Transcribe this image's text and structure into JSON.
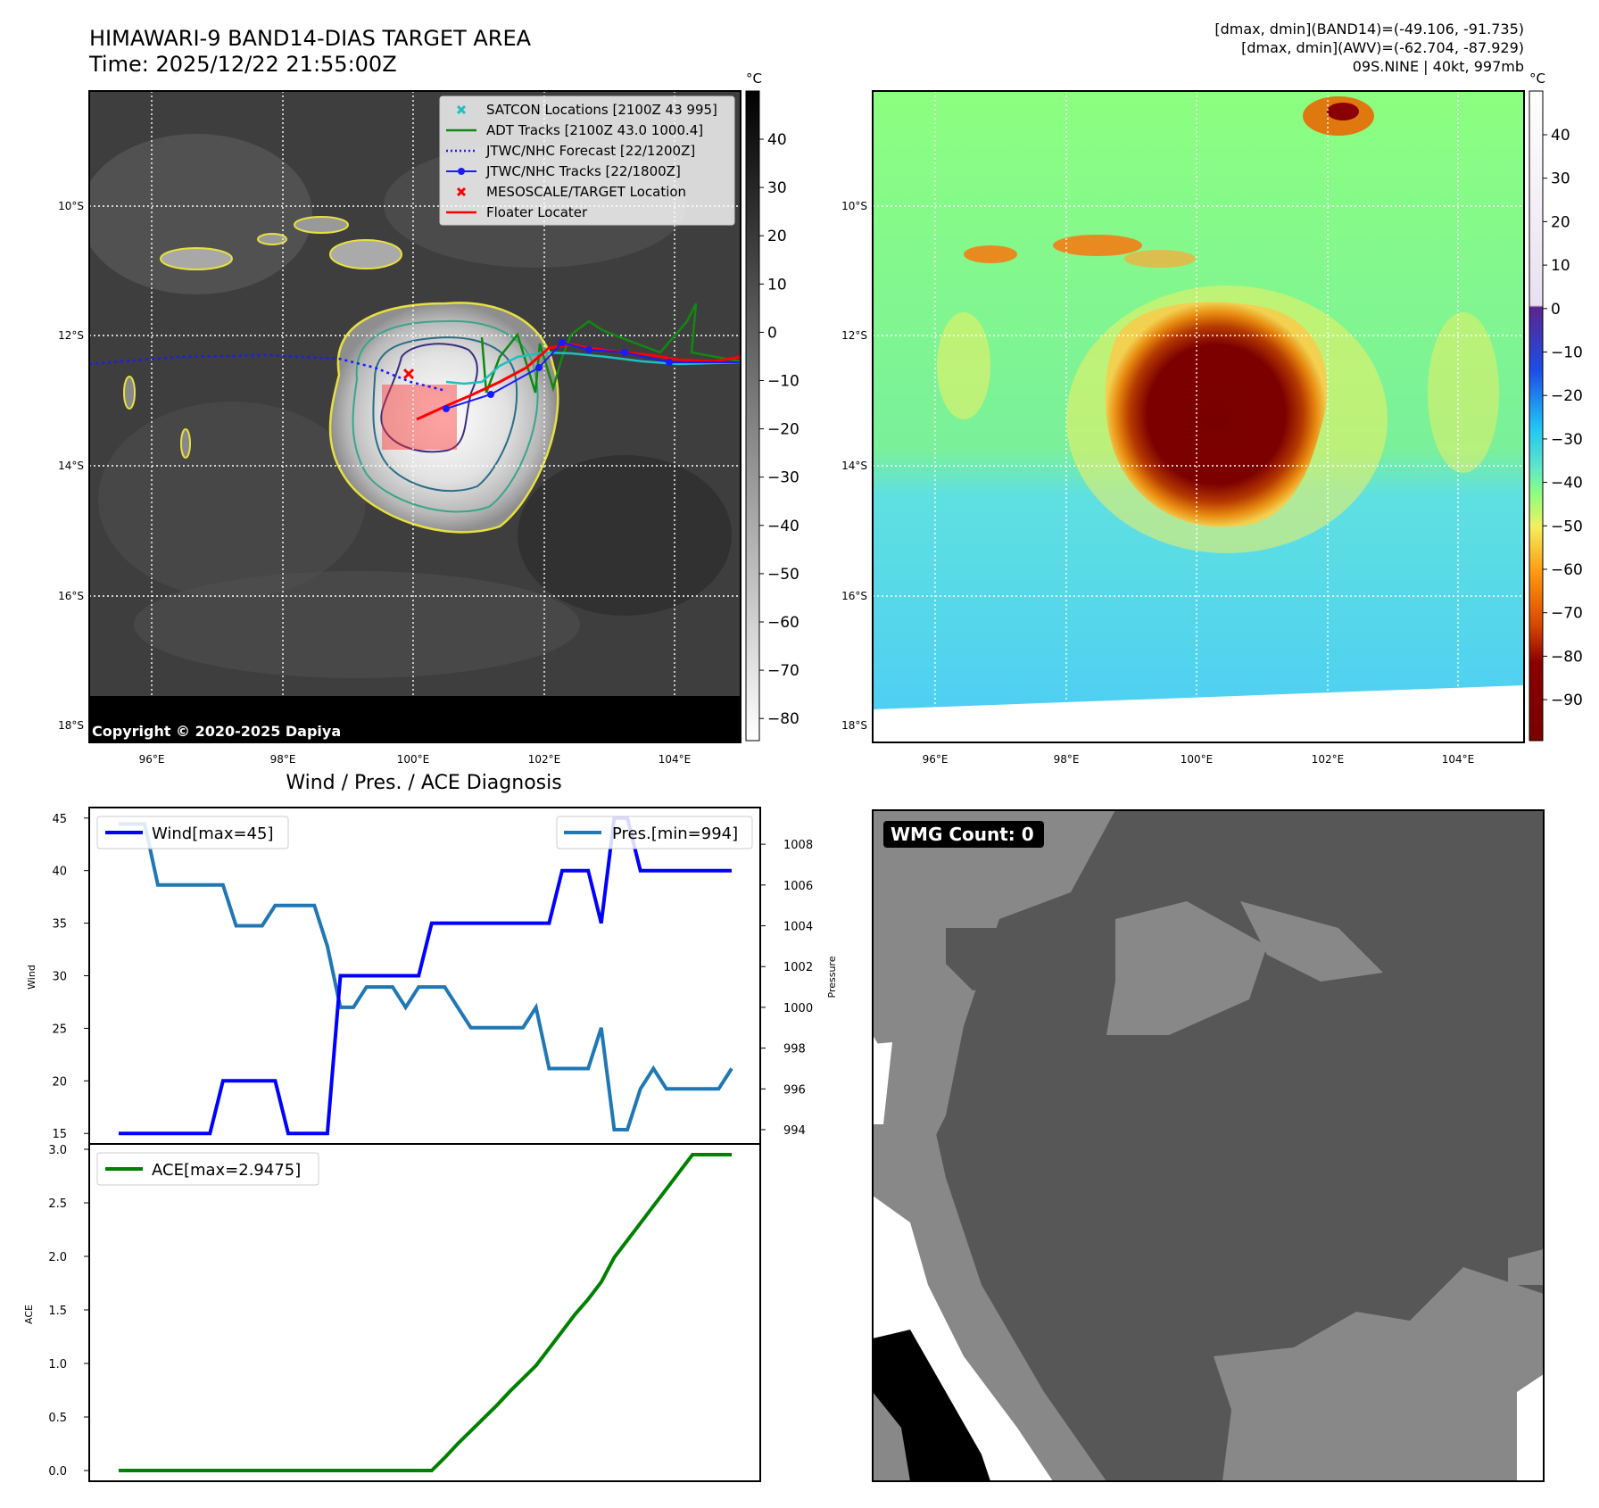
{
  "header": {
    "title_line1": "HIMAWARI-9 BAND14-DIAS TARGET AREA",
    "title_line2": "Time: 2025/12/22 21:55:00Z",
    "info_line1": "[dmax, dmin](BAND14)=(-49.106, -91.735)",
    "info_line2": "[dmax, dmin](AWV)=(-62.704, -87.929)",
    "info_line3": "09S.NINE | 40kt, 997mb"
  },
  "map_axes": {
    "lon_ticks": [
      "96°E",
      "98°E",
      "100°E",
      "102°E",
      "104°E"
    ],
    "lat_ticks": [
      "10°S",
      "12°S",
      "14°S",
      "16°S",
      "18°S"
    ]
  },
  "ir_panel": {
    "copyright": "Copyright © 2020-2025 Dapiya",
    "colorbar_unit": "°C",
    "colorbar_ticks": [
      "40",
      "30",
      "20",
      "10",
      "0",
      "−10",
      "−20",
      "−30",
      "−40",
      "−50",
      "−60",
      "−70",
      "−80"
    ],
    "legend": [
      {
        "label": "SATCON Locations [2100Z 43 995]",
        "color": "#1fbfbf",
        "marker": "x-icon"
      },
      {
        "label": "ADT Tracks [2100Z 43.0 1000.4]",
        "color": "#118811",
        "marker": "line-icon"
      },
      {
        "label": "JTWC/NHC Forecast [22/1200Z]",
        "color": "#1a1aff",
        "marker": "dotted-line-icon"
      },
      {
        "label": "JTWC/NHC Tracks [22/1800Z]",
        "color": "#1a1aff",
        "marker": "line-dot-icon"
      },
      {
        "label": "MESOSCALE/TARGET Location",
        "color": "#ff0000",
        "marker": "x-icon"
      },
      {
        "label": "Floater Locater",
        "color": "#ff0000",
        "marker": "line-icon"
      }
    ]
  },
  "color_panel": {
    "colorbar_unit": "°C",
    "colorbar_ticks": [
      "40",
      "30",
      "20",
      "10",
      "0",
      "−10",
      "−20",
      "−30",
      "−40",
      "−50",
      "−60",
      "−70",
      "−80",
      "−90"
    ]
  },
  "wmg_panel": {
    "badge": "WMG Count: 0"
  },
  "chart_data": [
    {
      "type": "line",
      "title": "Wind / Pres. / ACE Diagnosis",
      "ylabel": "Wind",
      "y2label": "Pressure",
      "ylim": [
        14,
        46
      ],
      "y2lim": [
        993.3,
        1009.8
      ],
      "yticks": [
        "15",
        "20",
        "25",
        "30",
        "35",
        "40",
        "45"
      ],
      "y2ticks": [
        "994",
        "996",
        "998",
        "1000",
        "1002",
        "1004",
        "1006",
        "1008"
      ],
      "x": [
        0,
        1,
        2,
        3,
        4,
        5,
        6,
        7,
        8,
        9,
        10,
        11,
        12,
        13,
        14,
        15,
        16,
        17,
        18,
        19,
        20,
        21,
        22,
        23,
        24,
        25,
        26,
        27,
        28,
        29,
        30,
        31,
        32,
        33,
        34,
        35,
        36,
        37,
        38,
        39,
        40,
        41,
        42,
        43,
        44,
        45,
        46,
        47
      ],
      "series": [
        {
          "name": "Wind[max=45]",
          "axis": "left",
          "color": "#0000ff",
          "values": [
            15,
            15,
            15,
            15,
            15,
            15,
            15,
            15,
            20,
            20,
            20,
            20,
            20,
            15,
            15,
            15,
            15,
            30,
            30,
            30,
            30,
            30,
            30,
            30,
            35,
            35,
            35,
            35,
            35,
            35,
            35,
            35,
            35,
            35,
            40,
            40,
            40,
            35,
            45,
            45,
            40,
            40,
            40,
            40,
            40,
            40,
            40,
            40
          ]
        },
        {
          "name": "Pres.[min=994]",
          "axis": "right",
          "color": "#1f77b4",
          "values": [
            1009,
            1009,
            1009,
            1006,
            1006,
            1006,
            1006,
            1006,
            1006,
            1004,
            1004,
            1004,
            1005,
            1005,
            1005,
            1005,
            1003,
            1000,
            1000,
            1001,
            1001,
            1001,
            1000,
            1001,
            1001,
            1001,
            1000,
            999,
            999,
            999,
            999,
            999,
            1000,
            997,
            997,
            997,
            997,
            999,
            994,
            994,
            996,
            997,
            996,
            996,
            996,
            996,
            996,
            997
          ]
        }
      ]
    },
    {
      "type": "line",
      "ylabel": "ACE",
      "ylim": [
        -0.1,
        3.05
      ],
      "yticks": [
        "0.0",
        "0.5",
        "1.0",
        "1.5",
        "2.0",
        "2.5",
        "3.0"
      ],
      "x": [
        0,
        1,
        2,
        3,
        4,
        5,
        6,
        7,
        8,
        9,
        10,
        11,
        12,
        13,
        14,
        15,
        16,
        17,
        18,
        19,
        20,
        21,
        22,
        23,
        24,
        25,
        26,
        27,
        28,
        29,
        30,
        31,
        32,
        33,
        34,
        35,
        36,
        37,
        38,
        39,
        40,
        41,
        42,
        43,
        44,
        45,
        46,
        47
      ],
      "series": [
        {
          "name": "ACE[max=2.9475]",
          "color": "#008000",
          "values": [
            0,
            0,
            0,
            0,
            0,
            0,
            0,
            0,
            0,
            0,
            0,
            0,
            0,
            0,
            0,
            0,
            0,
            0,
            0,
            0,
            0,
            0,
            0,
            0,
            0,
            0.12,
            0.25,
            0.37,
            0.49,
            0.61,
            0.74,
            0.86,
            0.98,
            1.14,
            1.3,
            1.46,
            1.6,
            1.76,
            1.99,
            2.15,
            2.31,
            2.47,
            2.63,
            2.79,
            2.95,
            2.95,
            2.95,
            2.95
          ]
        }
      ]
    }
  ]
}
